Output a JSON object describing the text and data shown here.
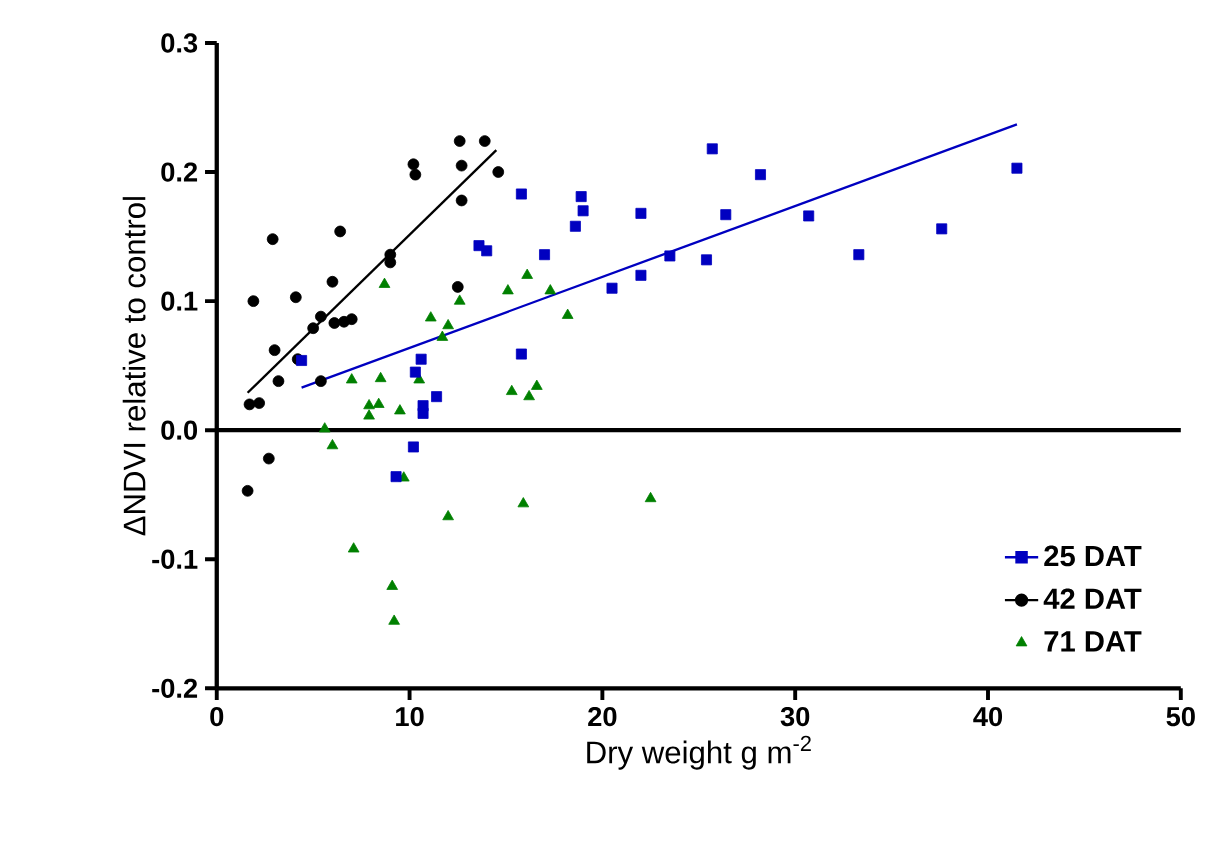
{
  "chart_data": {
    "type": "scatter",
    "xlabel": "Dry weight g m$^{-2}$",
    "ylabel": "ΔNDVI relative to control",
    "xlim": [
      0,
      50
    ],
    "xticks": [
      0,
      10,
      20,
      30,
      40,
      50
    ],
    "ylim": [
      -0.2,
      0.3
    ],
    "yticks": [
      -0.2,
      -0.1,
      {
        "value": 0,
        "label": "0.0"
      },
      0.1,
      0.2,
      0.3
    ],
    "legend": "bottom right",
    "ref_lines": [
      {
        "axis": "y",
        "value": 0
      }
    ],
    "series": [
      {
        "name": "25 DAT",
        "marker": "square",
        "color": "#0000c0",
        "x": [
          4.4,
          15.8,
          18.9,
          19.0,
          18.6,
          13.6,
          14.0,
          17.0,
          15.8,
          10.6,
          10.3,
          11.4,
          10.7,
          10.7,
          10.2,
          9.3,
          25.7,
          28.2,
          22.0,
          26.4,
          30.7,
          37.6,
          41.5,
          23.5,
          25.4,
          33.3,
          22.0,
          20.5
        ],
        "values": [
          0.054,
          0.183,
          0.181,
          0.17,
          0.158,
          0.143,
          0.139,
          0.136,
          0.059,
          0.055,
          0.045,
          0.026,
          0.019,
          0.013,
          -0.013,
          -0.036,
          0.218,
          0.198,
          0.168,
          0.167,
          0.166,
          0.156,
          0.203,
          0.135,
          0.132,
          0.136,
          0.12,
          0.11
        ]
      },
      {
        "name": "42 DAT",
        "marker": "circle",
        "color": "#000000",
        "x": [
          1.7,
          2.2,
          1.9,
          2.9,
          3.0,
          3.2,
          4.1,
          4.2,
          5.0,
          5.4,
          5.4,
          6.0,
          6.1,
          6.6,
          7.0,
          6.4,
          9.0,
          9.0,
          12.5,
          10.2,
          10.3,
          12.7,
          12.7,
          14.6,
          12.6,
          13.9,
          2.7,
          1.6
        ],
        "values": [
          0.02,
          0.021,
          0.1,
          0.148,
          0.062,
          0.038,
          0.103,
          0.055,
          0.079,
          0.088,
          0.038,
          0.115,
          0.083,
          0.084,
          0.086,
          0.154,
          0.136,
          0.13,
          0.111,
          0.206,
          0.198,
          0.205,
          0.178,
          0.2,
          0.224,
          0.224,
          -0.022,
          -0.047
        ]
      },
      {
        "name": "71 DAT",
        "marker": "triangle",
        "color": "#008000",
        "x": [
          8.7,
          11.1,
          12.0,
          11.7,
          12.6,
          15.1,
          16.1,
          17.3,
          18.2,
          7.0,
          8.5,
          10.5,
          7.9,
          8.4,
          7.9,
          9.5,
          15.3,
          16.2,
          16.6,
          5.6,
          6.0,
          9.7,
          12.0,
          15.9,
          22.5,
          7.1,
          9.1,
          9.2
        ],
        "values": [
          0.113,
          0.087,
          0.081,
          0.072,
          0.1,
          0.108,
          0.12,
          0.108,
          0.089,
          0.039,
          0.04,
          0.039,
          0.019,
          0.02,
          0.011,
          0.015,
          0.03,
          0.026,
          0.034,
          0.001,
          -0.012,
          -0.037,
          -0.067,
          -0.057,
          -0.053,
          -0.092,
          -0.121,
          -0.148
        ]
      },
      {
        "type": "line",
        "color": "#0000c0",
        "x": [
          4.4,
          41.5
        ],
        "values": [
          0.033,
          0.237
        ]
      },
      {
        "type": "line",
        "color": "#000000",
        "x": [
          1.6,
          14.5
        ],
        "values": [
          0.029,
          0.217
        ]
      }
    ]
  }
}
